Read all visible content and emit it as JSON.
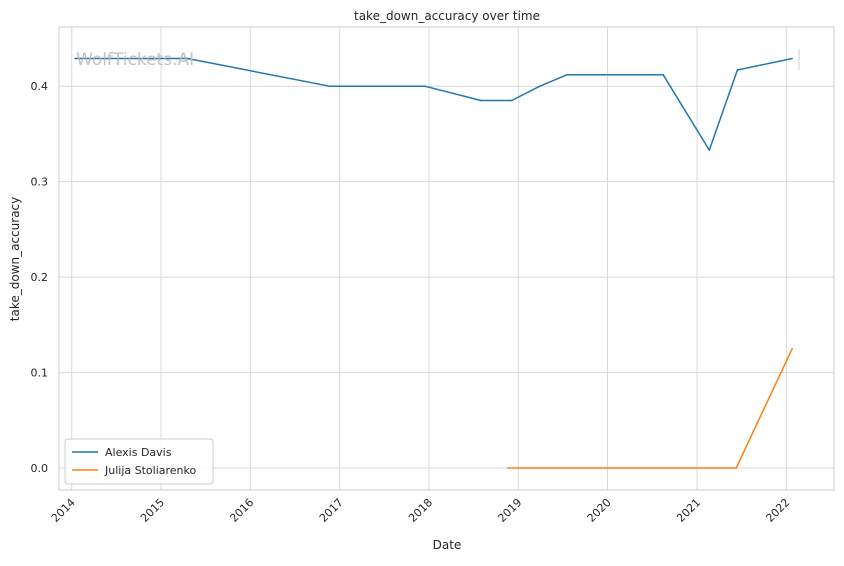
{
  "chart_data": {
    "type": "line",
    "title": "take_down_accuracy over time",
    "xlabel": "Date",
    "ylabel": "take_down_accuracy",
    "x_ticks": [
      "2014",
      "2015",
      "2016",
      "2017",
      "2018",
      "2019",
      "2020",
      "2021",
      "2022"
    ],
    "y_ticks": [
      "0.0",
      "0.1",
      "0.2",
      "0.3",
      "0.4"
    ],
    "xlim": [
      "2013-11-10",
      "2022-07-15"
    ],
    "ylim": [
      -0.023,
      0.462
    ],
    "grid": true,
    "legend_position": "lower-left",
    "watermark": "WolfTickets.AI",
    "series": [
      {
        "name": "Alexis Davis",
        "color": "#1f77b4",
        "points": [
          {
            "x": "2014-01-15",
            "y": 0.429
          },
          {
            "x": "2015-04-20",
            "y": 0.429
          },
          {
            "x": "2016-11-20",
            "y": 0.4
          },
          {
            "x": "2017-12-15",
            "y": 0.4
          },
          {
            "x": "2018-08-01",
            "y": 0.385
          },
          {
            "x": "2018-12-05",
            "y": 0.385
          },
          {
            "x": "2019-03-30",
            "y": 0.4
          },
          {
            "x": "2019-07-20",
            "y": 0.412
          },
          {
            "x": "2020-08-15",
            "y": 0.412
          },
          {
            "x": "2021-02-20",
            "y": 0.333
          },
          {
            "x": "2021-06-15",
            "y": 0.417
          },
          {
            "x": "2022-01-25",
            "y": 0.429
          }
        ]
      },
      {
        "name": "Julija Stoliarenko",
        "color": "#ff7f0e",
        "points": [
          {
            "x": "2018-11-20",
            "y": 0.0
          },
          {
            "x": "2021-06-10",
            "y": 0.0
          },
          {
            "x": "2022-01-25",
            "y": 0.125
          }
        ]
      }
    ]
  }
}
